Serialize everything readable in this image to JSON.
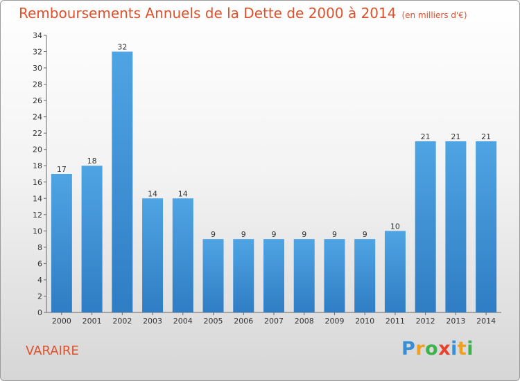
{
  "title": "Remboursements Annuels de la Dette de 2000 à 2014",
  "unit": "(en milliers d'€)",
  "commune": "VARAIRE",
  "logo": {
    "letters": [
      "P",
      "r",
      "o",
      "x",
      "i",
      "t",
      "i"
    ],
    "colors": [
      "#3a8fd4",
      "#f0a020",
      "#3cb34a",
      "#e8402a",
      "#3a8fd4",
      "#f0a020",
      "#3cb34a"
    ]
  },
  "colors": {
    "bar": "#4fa4e3",
    "bar_dark": "#2f7dc4",
    "title": "#e0502a"
  },
  "chart_data": {
    "type": "bar",
    "title": "Remboursements Annuels de la Dette de 2000 à 2014",
    "subtitle": "(en milliers d'€)",
    "xlabel": "",
    "ylabel": "",
    "categories": [
      "2000",
      "2001",
      "2002",
      "2003",
      "2004",
      "2005",
      "2006",
      "2007",
      "2008",
      "2009",
      "2010",
      "2011",
      "2012",
      "2013",
      "2014"
    ],
    "values": [
      17,
      18,
      32,
      14,
      14,
      9,
      9,
      9,
      9,
      9,
      9,
      10,
      21,
      21,
      21
    ],
    "ylim": [
      0,
      34
    ],
    "yticks": [
      0,
      2,
      4,
      6,
      8,
      10,
      12,
      14,
      16,
      18,
      20,
      22,
      24,
      26,
      28,
      30,
      32,
      34
    ],
    "grid": false,
    "data_labels": true
  }
}
